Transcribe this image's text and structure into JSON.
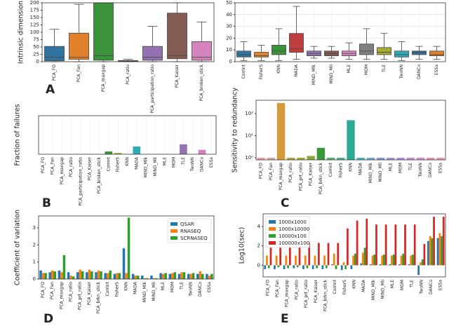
{
  "chart_data": [
    {
      "type": "box",
      "label": "A",
      "ylabel": "Intrinsic dimension",
      "categories": [
        "PCA_FO",
        "PCA_Fan",
        "PCA_maxgap",
        "PCA_ratio",
        "PCA_participation_ratio",
        "PCA_Kaiser",
        "PCA_broken_stick"
      ],
      "colors": [
        "#3274a1",
        "#e1812c",
        "#3a923a",
        "#c03d3e",
        "#9372b2",
        "#845b53",
        "#d684bd"
      ],
      "boxes": [
        {
          "low": 0,
          "q1": 3,
          "median": 15,
          "q3": 52,
          "high": 110
        },
        {
          "low": 0,
          "q1": 8,
          "median": 15,
          "q3": 97,
          "high": 195
        },
        {
          "low": 0,
          "q1": 5,
          "median": 20,
          "q3": 200,
          "high": 200
        },
        {
          "low": 0,
          "q1": 1,
          "median": 2,
          "q3": 4,
          "high": 8
        },
        {
          "low": 0,
          "q1": 5,
          "median": 15,
          "q3": 52,
          "high": 120
        },
        {
          "low": 0,
          "q1": 10,
          "median": 20,
          "q3": 165,
          "high": 200
        },
        {
          "low": 0,
          "q1": 5,
          "median": 15,
          "q3": 68,
          "high": 135
        }
      ],
      "ylim": [
        0,
        200
      ],
      "yticks": [
        0,
        25,
        50,
        75,
        100,
        125,
        150,
        175,
        200
      ],
      "grid": false
    },
    {
      "type": "box",
      "categories": [
        "Corrint",
        "FisherS",
        "KNN",
        "MADA",
        "MIND_Mlk",
        "MIND_Mli",
        "MLE",
        "MOM",
        "TLE",
        "TwoNN",
        "DANCo",
        "ESSa"
      ],
      "colors": [
        "#3274a1",
        "#e1812c",
        "#3a923a",
        "#c03d3e",
        "#9372b2",
        "#845b53",
        "#d684bd",
        "#7f7f7f",
        "#a9aa35",
        "#2eabb8",
        "#3274a1",
        "#e1812c"
      ],
      "boxes": [
        {
          "low": 1,
          "q1": 4,
          "median": 6,
          "q3": 9,
          "high": 17
        },
        {
          "low": 1,
          "q1": 4,
          "median": 5,
          "q3": 8,
          "high": 14
        },
        {
          "low": 1,
          "q1": 6,
          "median": 9,
          "q3": 14,
          "high": 28
        },
        {
          "low": 2,
          "q1": 8,
          "median": 11,
          "q3": 24,
          "high": 47
        },
        {
          "low": 3,
          "q1": 5,
          "median": 7,
          "q3": 9,
          "high": 13
        },
        {
          "low": 3,
          "q1": 5,
          "median": 7,
          "q3": 9,
          "high": 13
        },
        {
          "low": 2,
          "q1": 5,
          "median": 7,
          "q3": 9,
          "high": 16
        },
        {
          "low": 2,
          "q1": 6,
          "median": 9,
          "q3": 15,
          "high": 28
        },
        {
          "low": 2,
          "q1": 6,
          "median": 8,
          "q3": 12,
          "high": 24
        },
        {
          "low": 1,
          "q1": 4,
          "median": 6,
          "q3": 9,
          "high": 17
        },
        {
          "low": 2,
          "q1": 6,
          "median": 8,
          "q3": 9,
          "high": 13
        },
        {
          "low": 2,
          "q1": 5,
          "median": 6,
          "q3": 9,
          "high": 13
        }
      ],
      "ylim": [
        0,
        50
      ],
      "yticks": [
        0,
        10,
        20,
        30,
        40,
        50
      ],
      "grid": true
    },
    {
      "type": "bar",
      "label": "B",
      "ylabel": "Fraction of failures",
      "categories": [
        "PCA_FO",
        "PCA_Fan",
        "PCA_maxgap",
        "PCA_ratio",
        "PCA_participation_ratio",
        "PCA_Kaiser",
        "PCA_broken_stick",
        "Corrint",
        "FisherS",
        "KNN",
        "MADA",
        "MIND_Mlk",
        "MIND_Mli",
        "MLE",
        "MOM",
        "TLE",
        "TwoNN",
        "DANCo",
        "ESSa"
      ],
      "values": [
        0,
        0,
        0,
        0,
        0,
        0,
        0,
        0.025,
        0.012,
        0,
        0.07,
        0,
        0,
        0,
        0,
        0.09,
        0,
        0.04,
        0
      ],
      "colors": [
        "#3274a1",
        "#e1812c",
        "#3a923a",
        "#c03d3e",
        "#9372b2",
        "#845b53",
        "#d684bd",
        "#3a923a",
        "#a9aa35",
        "#2eabb8",
        "#2eabb8",
        "#3274a1",
        "#e1812c",
        "#3a923a",
        "#c03d3e",
        "#9372b2",
        "#845b53",
        "#d684bd",
        "#7f7f7f"
      ],
      "ylim": [
        0,
        0.35
      ],
      "grid": true
    },
    {
      "type": "bar",
      "label": "C",
      "ylabel": "Sensitivity to redundancy",
      "log_y": true,
      "categories": [
        "PCA_FO",
        "PCA_Fan",
        "PCA_maxgap",
        "PCA_ratio",
        "PCA_prt_ratio",
        "PCA_Kaiser",
        "PCA_brkn_stick",
        "Corrint",
        "FisherS",
        "KNN",
        "MADA",
        "MIND_Mlk",
        "MIND_Mli",
        "MLE",
        "MOM",
        "TLE",
        "TwoNN",
        "DANCo",
        "ESSa"
      ],
      "values": [
        1,
        1,
        300,
        1,
        1,
        1.2,
        2.8,
        1,
        1,
        50,
        1,
        1,
        1,
        1,
        1,
        1,
        1,
        1,
        1
      ],
      "colors": [
        "#e8a0a0",
        "#e8a0a0",
        "#d69a3c",
        "#b8a040",
        "#a0a838",
        "#8aa838",
        "#3a9a3a",
        "#5ab070",
        "#50b090",
        "#30a898",
        "#50b0c0",
        "#70a8d8",
        "#8898e0",
        "#a090e0",
        "#b888e0",
        "#d088d0",
        "#e088c0",
        "#e890b0",
        "#e898a8"
      ],
      "ylim": [
        0.8,
        400
      ],
      "yticks": [
        {
          "value": 1,
          "label": "10⁰"
        },
        {
          "value": 10,
          "label": "10¹"
        },
        {
          "value": 100,
          "label": "10²"
        }
      ],
      "grid": false
    },
    {
      "type": "bar",
      "label": "D",
      "ylabel": "Coefficient of variation",
      "legend": "top-right",
      "categories": [
        "PCA_FO",
        "PCA_Fan",
        "PCA_maxgap",
        "PCA_ratio",
        "PCA_prt_ratio",
        "PCA_Kaiser",
        "PCA_brkn_stick",
        "Corrint",
        "FisherS",
        "KNN",
        "MADA",
        "MIND_Mlk",
        "MIND_Mli",
        "MLE",
        "MOM",
        "TLE",
        "TwoNN",
        "DANCo",
        "ESSa"
      ],
      "series": [
        {
          "name": "QSAR",
          "color": "#1f77b4",
          "values": [
            0.5,
            0.4,
            0.5,
            0.4,
            0.4,
            0.4,
            0.4,
            0.35,
            0.3,
            1.8,
            0.3,
            0.2,
            0.2,
            0.35,
            0.3,
            0.3,
            0.3,
            0.3,
            0.3
          ]
        },
        {
          "name": "RNASEQ",
          "color": "#ff7f0e",
          "values": [
            0.35,
            0.5,
            0.4,
            0.2,
            0.55,
            0.55,
            0.5,
            0.35,
            0.35,
            0.35,
            0.2,
            0.05,
            0.05,
            0.3,
            0.35,
            0.4,
            0.3,
            0.45,
            0.2
          ]
        },
        {
          "name": "SCRNASEQ",
          "color": "#2ca02c",
          "values": [
            0.35,
            0.45,
            1.4,
            0.15,
            0.45,
            0.45,
            0.45,
            0.5,
            0.35,
            3.6,
            0.2,
            0.05,
            0.05,
            0.35,
            0.4,
            0.4,
            0.35,
            0.3,
            0.3
          ]
        }
      ],
      "ylim": [
        0,
        3.7
      ],
      "yticks": [
        0,
        1,
        2,
        3
      ],
      "grid": false
    },
    {
      "type": "bar",
      "label": "E",
      "ylabel": "Log10(sec)",
      "legend": "top-left",
      "categories": [
        "PCA_FO",
        "PCA_Fan",
        "PCA_maxgap",
        "PCA_ratio",
        "PCA_prt_ratio",
        "PCA_Kaiser",
        "PCA_brkn_stick",
        "Corrint",
        "FisherS",
        "KNN",
        "MADA",
        "MIND_Mlk",
        "MIND_Mli",
        "MLE",
        "MOM",
        "TLE",
        "TwoNN",
        "DANCo",
        "ESSa"
      ],
      "series": [
        {
          "name": "1000x1000",
          "color": "#1f77b4",
          "values": [
            -0.4,
            -0.4,
            -0.4,
            -0.3,
            -0.4,
            -0.4,
            -0.4,
            0.1,
            -0.5,
            -0.4,
            0.2,
            0.1,
            0.1,
            0.1,
            0.1,
            0.1,
            -1,
            2.5,
            2.8
          ]
        },
        {
          "name": "1000x10000",
          "color": "#ff7f0e",
          "values": [
            1,
            1,
            1,
            1,
            1,
            1,
            1,
            1.2,
            0.3,
            1,
            1.3,
            1,
            1,
            1,
            1,
            1,
            0.3,
            3,
            3.3
          ]
        },
        {
          "name": "10000x100",
          "color": "#2ca02c",
          "values": [
            -0.3,
            -0.2,
            -0.3,
            -0.2,
            -0.3,
            -0.3,
            -0.3,
            -0.4,
            -0.4,
            1.2,
            1.8,
            1.1,
            1.1,
            1.1,
            1.2,
            1.1,
            0.6,
            2.8,
            3
          ]
        },
        {
          "name": "100000x100",
          "color": "#d62728",
          "values": [
            2,
            2,
            2,
            2,
            2.3,
            2.3,
            2.3,
            2.3,
            3.8,
            4.6,
            4.8,
            4.2,
            4.2,
            4.2,
            4.2,
            4.2,
            2.2,
            5,
            5
          ]
        }
      ],
      "ylim": [
        -1.2,
        5.3
      ],
      "yticks": [
        0,
        2,
        4
      ],
      "grid": false
    }
  ]
}
